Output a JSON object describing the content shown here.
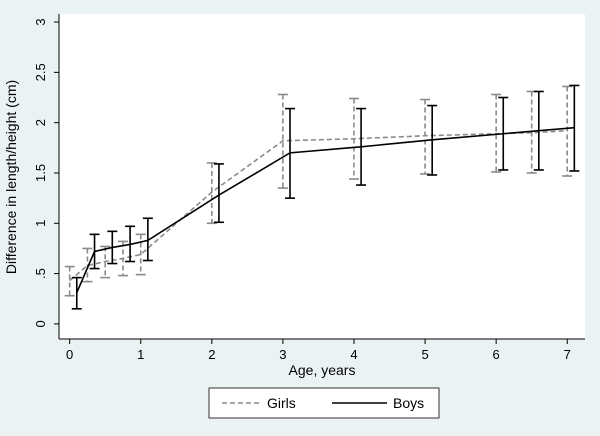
{
  "chart_data": {
    "type": "line",
    "xlabel": "Age, years",
    "ylabel": "Difference in length/height (cm)",
    "xlim": [
      -0.15,
      7.25
    ],
    "ylim": [
      -0.15,
      3.08
    ],
    "xticks": [
      0,
      1,
      2,
      3,
      4,
      5,
      6,
      7
    ],
    "xtick_labels": [
      "0",
      "1",
      "2",
      "3",
      "4",
      "5",
      "6",
      "7"
    ],
    "yticks": [
      0,
      0.5,
      1,
      1.5,
      2,
      2.5,
      3
    ],
    "ytick_labels": [
      "0",
      ".5",
      "1",
      "1.5",
      "2",
      "2.5",
      "3"
    ],
    "grid": false,
    "legend_position": "bottom",
    "series": [
      {
        "name": "Girls",
        "color": "#8a8a8a",
        "dash": true,
        "points": [
          {
            "x": 0.0,
            "y": 0.43,
            "lo": 0.28,
            "hi": 0.57
          },
          {
            "x": 0.25,
            "y": 0.58,
            "lo": 0.42,
            "hi": 0.75
          },
          {
            "x": 0.5,
            "y": 0.62,
            "lo": 0.46,
            "hi": 0.77
          },
          {
            "x": 0.75,
            "y": 0.65,
            "lo": 0.48,
            "hi": 0.82
          },
          {
            "x": 1.0,
            "y": 0.69,
            "lo": 0.49,
            "hi": 0.89
          },
          {
            "x": 2.0,
            "y": 1.31,
            "lo": 1.0,
            "hi": 1.6
          },
          {
            "x": 3.0,
            "y": 1.82,
            "lo": 1.35,
            "hi": 2.28
          },
          {
            "x": 4.0,
            "y": 1.84,
            "lo": 1.44,
            "hi": 2.24
          },
          {
            "x": 5.0,
            "y": 1.87,
            "lo": 1.49,
            "hi": 2.23
          },
          {
            "x": 6.0,
            "y": 1.89,
            "lo": 1.51,
            "hi": 2.28
          },
          {
            "x": 6.5,
            "y": 1.9,
            "lo": 1.5,
            "hi": 2.31
          },
          {
            "x": 7.0,
            "y": 1.92,
            "lo": 1.47,
            "hi": 2.36
          }
        ]
      },
      {
        "name": "Boys",
        "color": "#000000",
        "dash": false,
        "points": [
          {
            "x": 0.1,
            "y": 0.31,
            "lo": 0.15,
            "hi": 0.46
          },
          {
            "x": 0.35,
            "y": 0.72,
            "lo": 0.55,
            "hi": 0.89
          },
          {
            "x": 0.6,
            "y": 0.76,
            "lo": 0.6,
            "hi": 0.92
          },
          {
            "x": 0.85,
            "y": 0.79,
            "lo": 0.62,
            "hi": 0.97
          },
          {
            "x": 1.1,
            "y": 0.83,
            "lo": 0.63,
            "hi": 1.05
          },
          {
            "x": 2.1,
            "y": 1.28,
            "lo": 1.01,
            "hi": 1.59
          },
          {
            "x": 3.1,
            "y": 1.7,
            "lo": 1.25,
            "hi": 2.14
          },
          {
            "x": 4.1,
            "y": 1.76,
            "lo": 1.38,
            "hi": 2.14
          },
          {
            "x": 5.1,
            "y": 1.83,
            "lo": 1.48,
            "hi": 2.17
          },
          {
            "x": 6.1,
            "y": 1.89,
            "lo": 1.53,
            "hi": 2.25
          },
          {
            "x": 6.6,
            "y": 1.92,
            "lo": 1.53,
            "hi": 2.31
          },
          {
            "x": 7.1,
            "y": 1.95,
            "lo": 1.52,
            "hi": 2.37
          }
        ]
      }
    ]
  }
}
